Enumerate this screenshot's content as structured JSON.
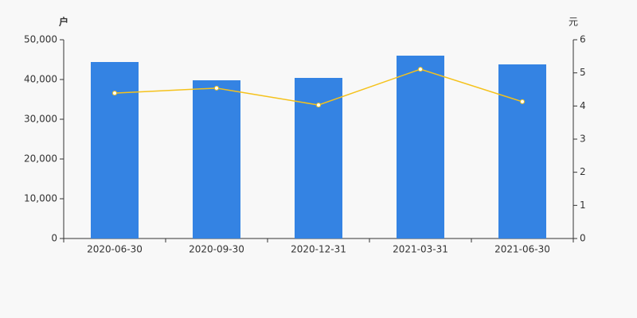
{
  "chart_data": {
    "type": "bar-line",
    "y_label": "户",
    "y2_label": "元",
    "categories": [
      "2020-06-30",
      "2020-09-30",
      "2020-12-31",
      "2021-03-31",
      "2021-06-30"
    ],
    "series": [
      {
        "type": "bar",
        "color": "#3483e3",
        "values": [
          44400,
          39800,
          40400,
          46000,
          43800
        ]
      },
      {
        "type": "line",
        "axis": "y2",
        "color": "#f5c21b",
        "values": [
          4.39,
          4.54,
          4.03,
          5.11,
          4.13
        ]
      }
    ],
    "ylim": [
      0,
      50000
    ],
    "yticks": [
      0,
      {
        "value": 10000,
        "label": "10,000"
      },
      {
        "value": 20000,
        "label": "20,000"
      },
      {
        "value": 30000,
        "label": "30,000"
      },
      {
        "value": 40000,
        "label": "40,000"
      },
      {
        "value": 50000,
        "label": "50,000"
      }
    ],
    "y2lim": [
      0,
      6
    ],
    "y2ticks": [
      0,
      1,
      2,
      3,
      4,
      5,
      6
    ]
  }
}
